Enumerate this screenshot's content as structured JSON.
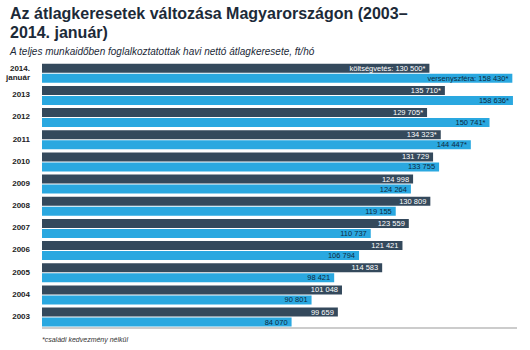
{
  "chart_data": {
    "type": "bar",
    "orientation": "horizontal",
    "title": "Az átlagkeresetek változása Magyarországon (2003–2014. január)",
    "subtitle": "A teljes munkaidőben foglalkoztatottak havi nettó átlagkeresete, ft/hó",
    "annotations": [
      "*családi kedvezmény nélkül"
    ],
    "categories": [
      "2014. január",
      "2013",
      "2012",
      "2011",
      "2010",
      "2009",
      "2008",
      "2007",
      "2006",
      "2005",
      "2004",
      "2003"
    ],
    "series": [
      {
        "name": "költségvetés",
        "color": "#34495c",
        "values": [
          130500,
          135710,
          129705,
          134323,
          131729,
          124998,
          130809,
          123559,
          121421,
          114583,
          101048,
          99659
        ],
        "value_labels": [
          "költségvetés: 130 500*",
          "135 710*",
          "129 705*",
          "134 323*",
          "131 729",
          "124 998",
          "130 809",
          "123 559",
          "121 421",
          "114 583",
          "101 048",
          "99 659"
        ]
      },
      {
        "name": "versenyszféra",
        "color": "#2aa8e0",
        "values": [
          158430,
          158636,
          150741,
          144447,
          133755,
          124264,
          119155,
          110737,
          106794,
          98421,
          90801,
          84070
        ],
        "value_labels": [
          "versenyszféra: 158 430*",
          "158 636*",
          "150 741*",
          "144 447*",
          "133 755",
          "124 264",
          "119 155",
          "110 737",
          "106 794",
          "98 421",
          "90 801",
          "84 070"
        ]
      }
    ],
    "xlim": [
      0,
      160000
    ],
    "xticks": [
      0,
      160000
    ],
    "tick_labels": "y",
    "data_labels": true,
    "grid": false
  }
}
